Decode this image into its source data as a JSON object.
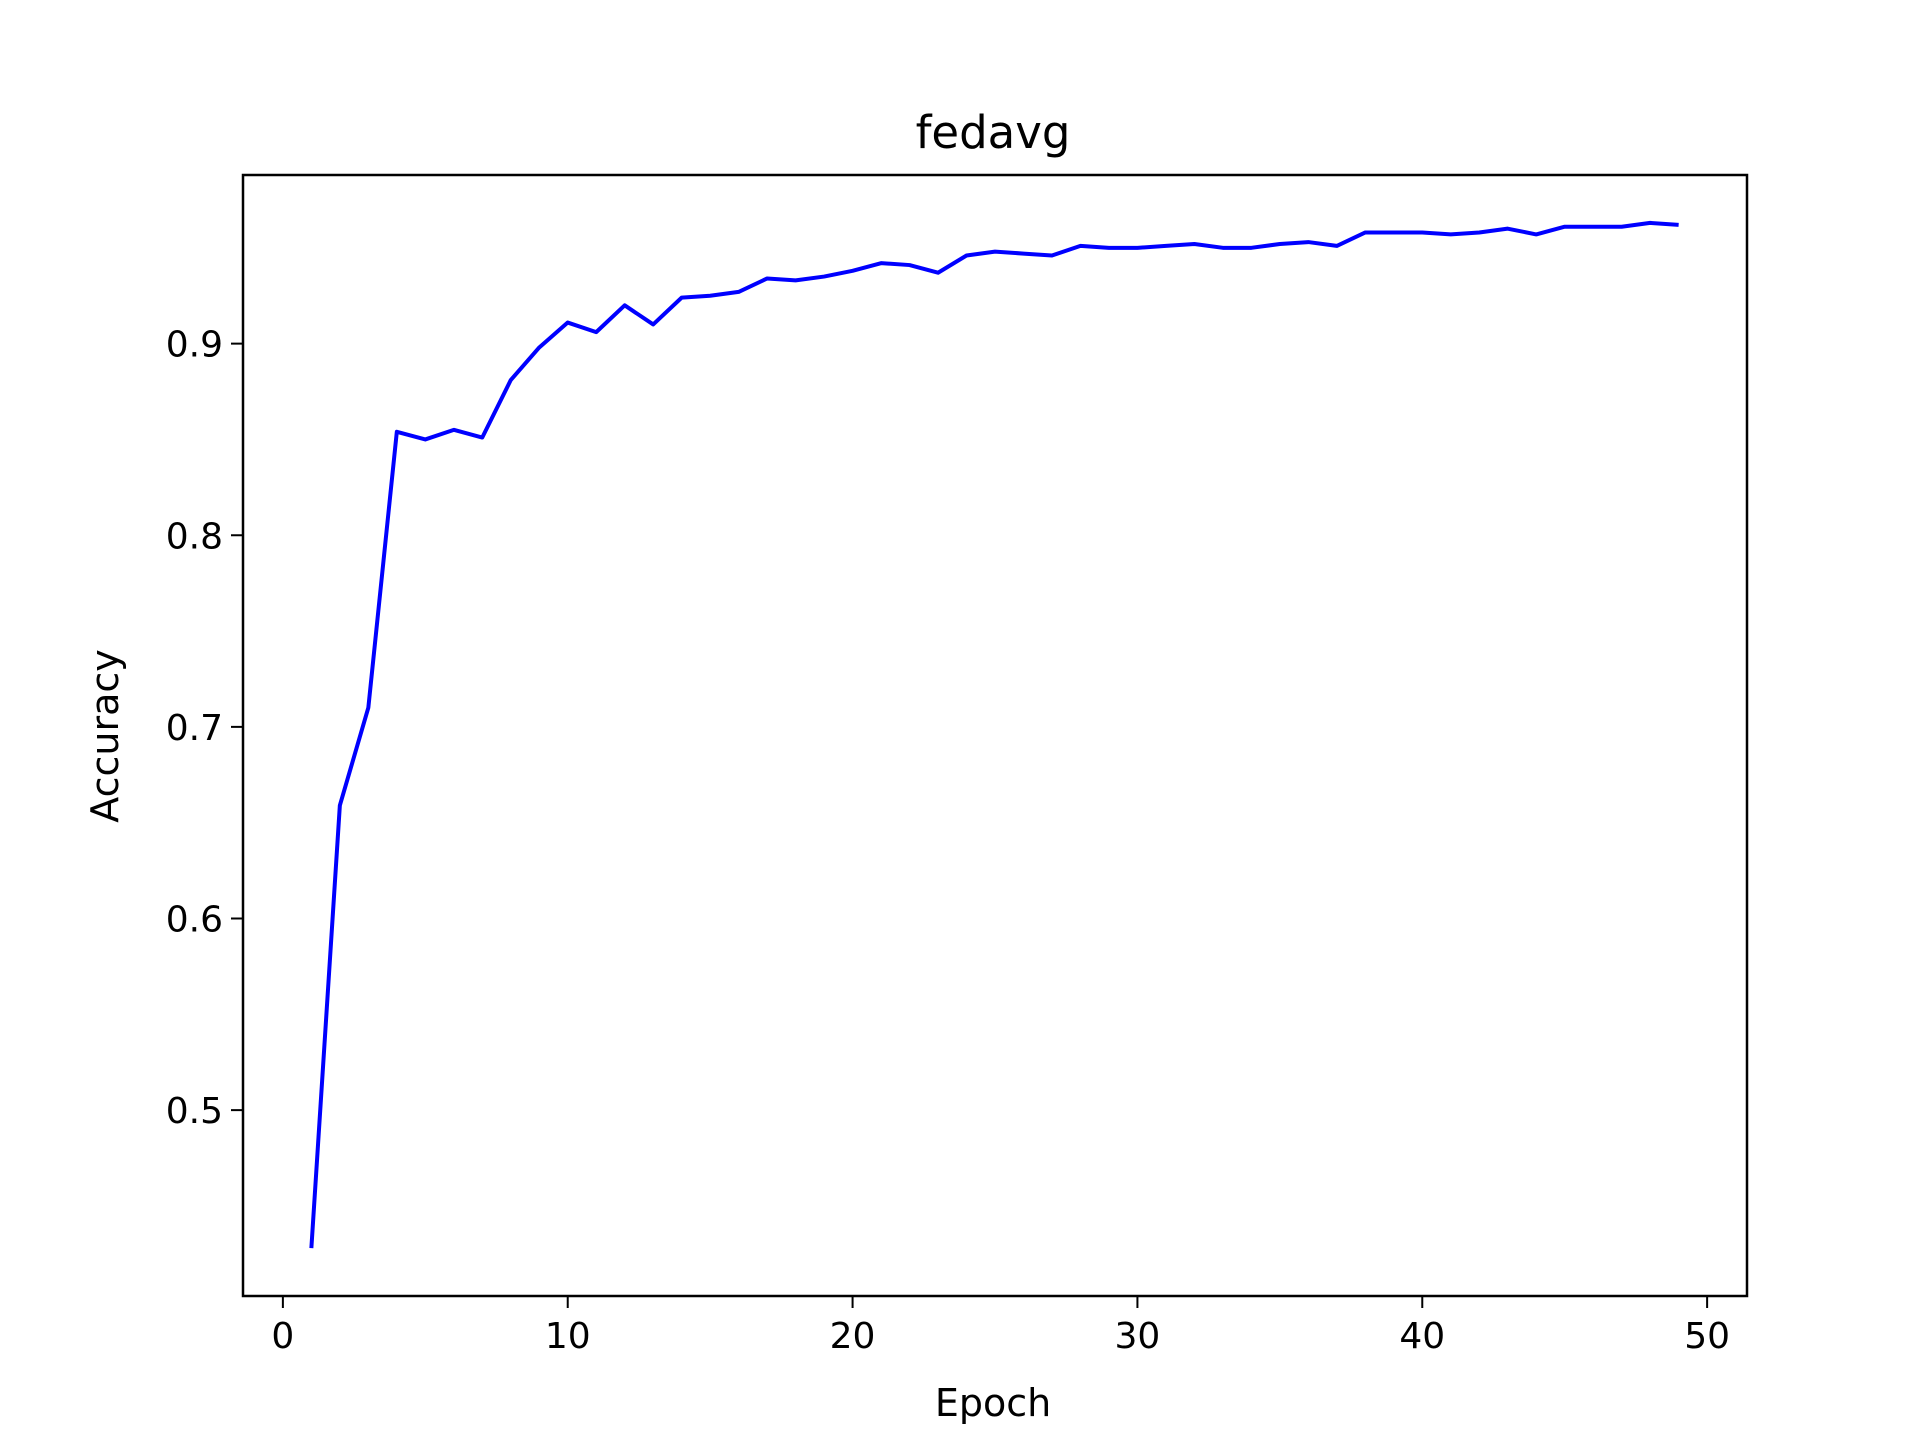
{
  "chart_data": {
    "type": "line",
    "title": "fedavg",
    "xlabel": "Epoch",
    "ylabel": "Accuracy",
    "xlim": [
      -1.4,
      51.4
    ],
    "ylim": [
      0.403,
      0.988
    ],
    "xticks": [
      0,
      10,
      20,
      30,
      40,
      50
    ],
    "xtick_labels": [
      "0",
      "10",
      "20",
      "30",
      "40",
      "50"
    ],
    "yticks": [
      0.5,
      0.6,
      0.7,
      0.8,
      0.9
    ],
    "ytick_labels": [
      "0.5",
      "0.6",
      "0.7",
      "0.8",
      "0.9"
    ],
    "grid": false,
    "legend": false,
    "series": [
      {
        "color": "#0000ff",
        "x": [
          1,
          2,
          3,
          4,
          5,
          6,
          7,
          8,
          9,
          10,
          11,
          12,
          13,
          14,
          15,
          16,
          17,
          18,
          19,
          20,
          21,
          22,
          23,
          24,
          25,
          26,
          27,
          28,
          29,
          30,
          31,
          32,
          33,
          34,
          35,
          36,
          37,
          38,
          39,
          40,
          41,
          42,
          43,
          44,
          45,
          46,
          47,
          48,
          49
        ],
        "y": [
          0.428,
          0.659,
          0.71,
          0.854,
          0.85,
          0.855,
          0.851,
          0.881,
          0.898,
          0.911,
          0.906,
          0.92,
          0.91,
          0.924,
          0.925,
          0.927,
          0.934,
          0.933,
          0.935,
          0.938,
          0.942,
          0.941,
          0.937,
          0.946,
          0.948,
          0.947,
          0.946,
          0.951,
          0.95,
          0.95,
          0.951,
          0.952,
          0.95,
          0.95,
          0.952,
          0.953,
          0.951,
          0.958,
          0.958,
          0.958,
          0.957,
          0.958,
          0.96,
          0.957,
          0.961,
          0.961,
          0.961,
          0.963,
          0.962
        ]
      }
    ]
  }
}
